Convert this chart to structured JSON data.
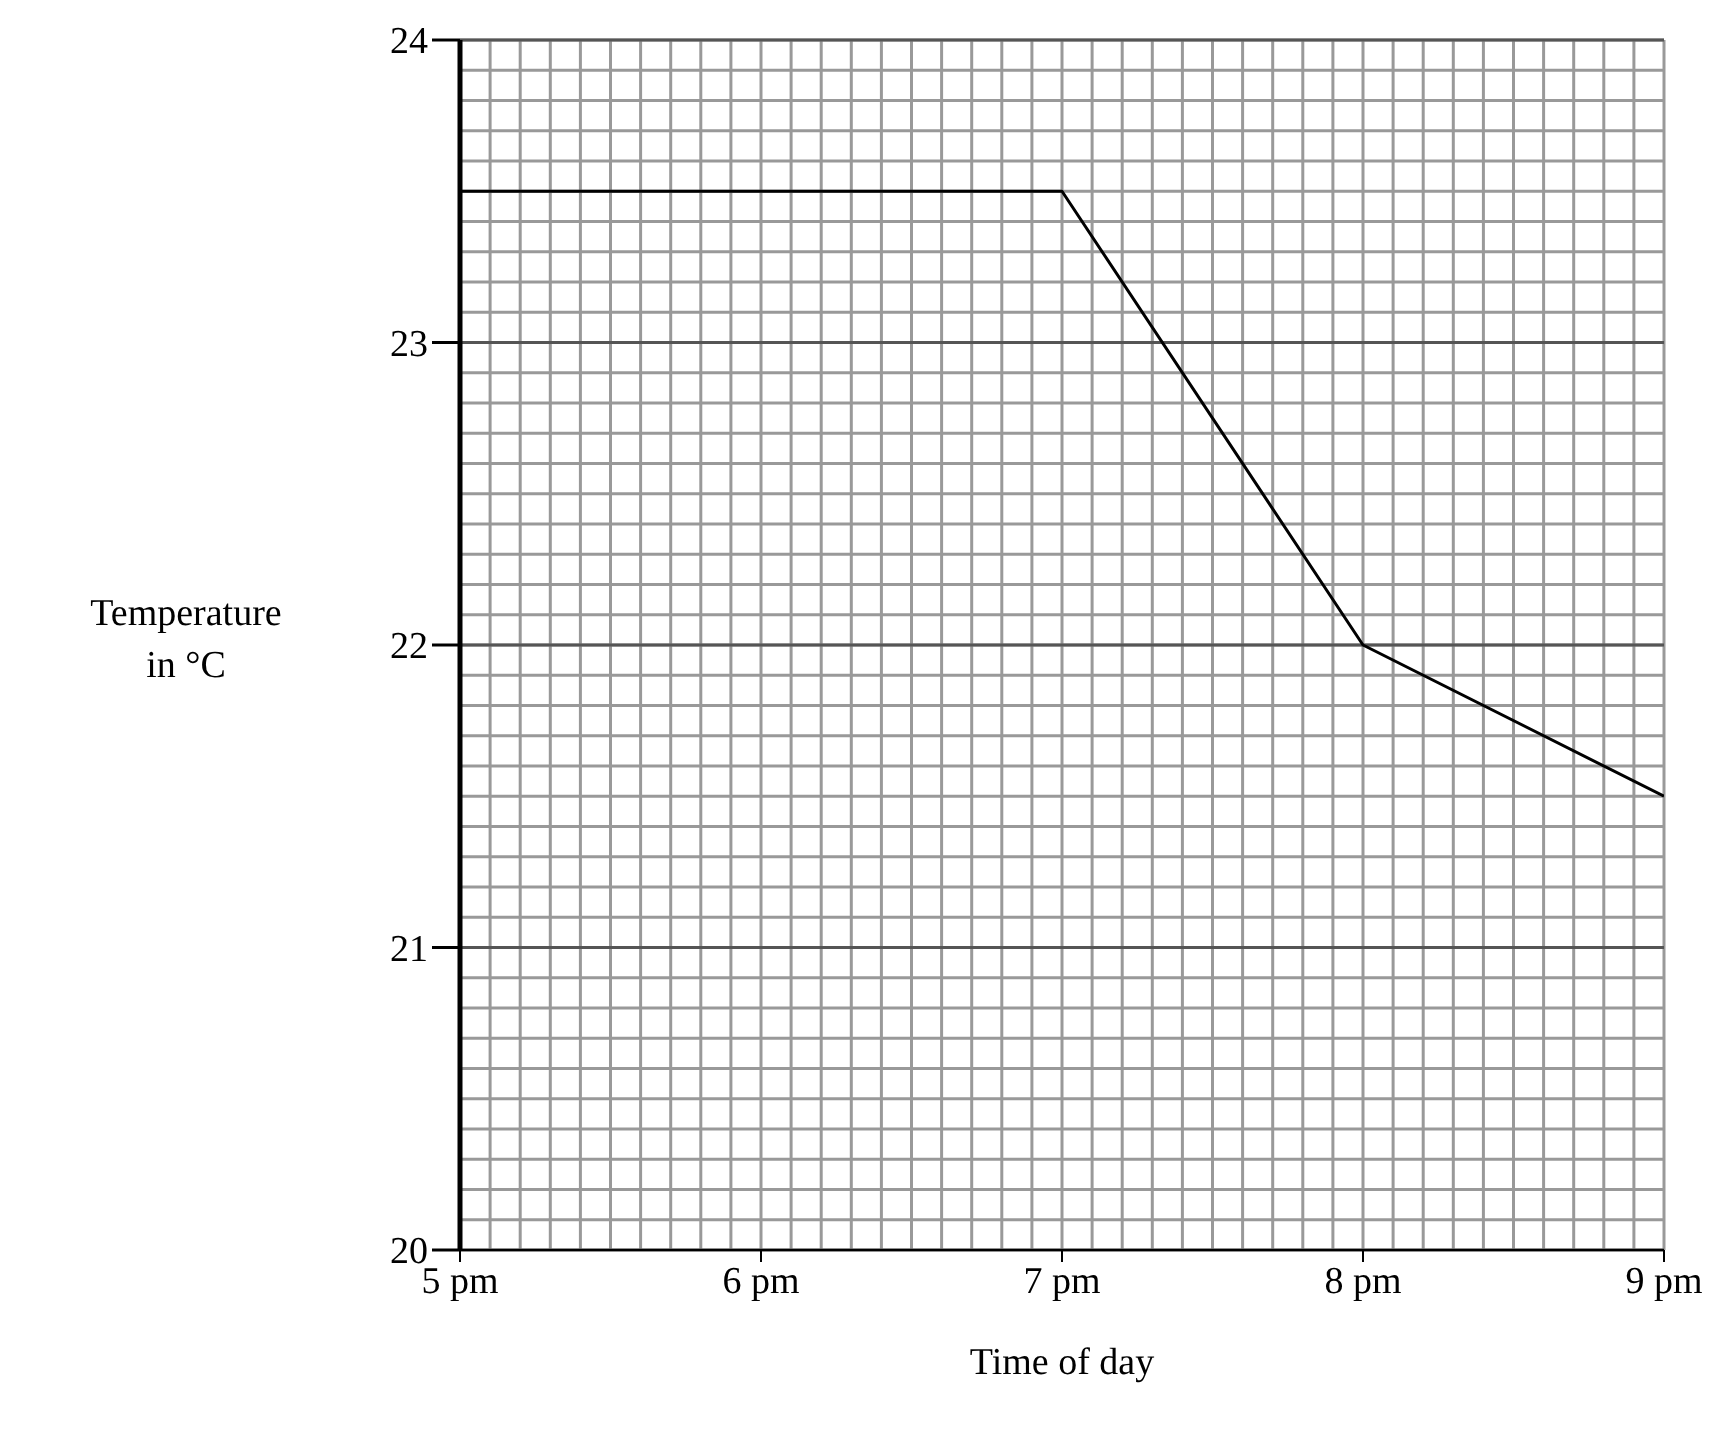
{
  "chart_data": {
    "type": "line",
    "xlabel": "Time of day",
    "ylabel": "Temperature\nin °C",
    "categories": [
      "5 pm",
      "6 pm",
      "7 pm",
      "8 pm",
      "9 pm"
    ],
    "series": [
      {
        "color": "#000000",
        "values": [
          23.5,
          23.5,
          23.5,
          22,
          21.5
        ]
      }
    ],
    "ylim": [
      20,
      24
    ],
    "yticks": [
      20,
      21,
      22,
      23,
      24
    ],
    "grid": true,
    "marker": "none",
    "line_style": "solid"
  }
}
